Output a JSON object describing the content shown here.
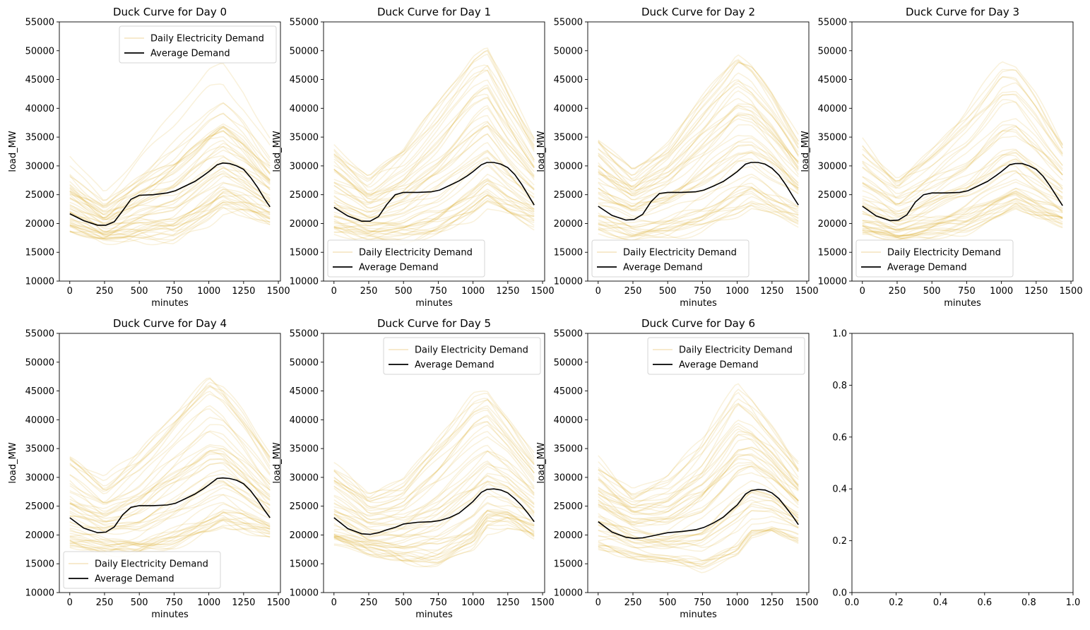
{
  "chart_data": [
    {
      "type": "line",
      "title": "Duck Curve for Day 0",
      "xlabel": "minutes",
      "ylabel": "load_MW",
      "xlim": [
        -75,
        1515
      ],
      "ylim": [
        10000,
        55000
      ],
      "xticks": [
        "0",
        "250",
        "500",
        "750",
        "1000",
        "1250",
        "1500"
      ],
      "yticks": [
        "10000",
        "15000",
        "20000",
        "25000",
        "30000",
        "35000",
        "40000",
        "45000",
        "50000",
        "55000"
      ],
      "legend": {
        "position": "upper-right",
        "entries": [
          "Daily Electricity Demand",
          "Average Demand"
        ]
      },
      "ensemble": {
        "name": "Daily Electricity Demand",
        "color": "#DAA520",
        "count": 52,
        "envelope": {
          "x": [
            0,
            250,
            500,
            750,
            1000,
            1100,
            1250,
            1440
          ],
          "min": [
            18500,
            17000,
            17500,
            16700,
            20000,
            22000,
            21500,
            20000
          ],
          "max": [
            32500,
            26000,
            33000,
            40000,
            47500,
            48500,
            44000,
            36000
          ]
        }
      },
      "average": {
        "name": "Average Demand",
        "color": "#000000",
        "x": [
          0,
          100,
          200,
          260,
          320,
          380,
          440,
          500,
          600,
          700,
          760,
          830,
          900,
          960,
          1000,
          1060,
          1100,
          1150,
          1200,
          1250,
          1300,
          1350,
          1400,
          1440
        ],
        "y": [
          21700,
          20500,
          19700,
          19700,
          20300,
          22200,
          24200,
          24900,
          25000,
          25300,
          25700,
          26500,
          27300,
          28300,
          29000,
          30200,
          30500,
          30400,
          30000,
          29400,
          28000,
          26300,
          24300,
          22900
        ]
      }
    },
    {
      "type": "line",
      "title": "Duck Curve for Day 1",
      "xlabel": "minutes",
      "ylabel": "load_MW",
      "xlim": [
        -75,
        1515
      ],
      "ylim": [
        10000,
        55000
      ],
      "xticks": [
        "0",
        "250",
        "500",
        "750",
        "1000",
        "1250",
        "1500"
      ],
      "yticks": [
        "10000",
        "15000",
        "20000",
        "25000",
        "30000",
        "35000",
        "40000",
        "45000",
        "50000",
        "55000"
      ],
      "legend": {
        "position": "lower-left",
        "entries": [
          "Daily Electricity Demand",
          "Average Demand"
        ]
      },
      "ensemble": {
        "name": "Daily Electricity Demand",
        "color": "#DAA520",
        "count": 52,
        "envelope": {
          "x": [
            0,
            250,
            500,
            750,
            1000,
            1100,
            1250,
            1440
          ],
          "min": [
            18500,
            17500,
            17500,
            18500,
            21500,
            23500,
            21500,
            20000
          ],
          "max": [
            34000,
            28000,
            33000,
            41000,
            50000,
            51500,
            44000,
            35000
          ]
        }
      },
      "average": {
        "name": "Average Demand",
        "color": "#000000",
        "x": [
          0,
          100,
          200,
          260,
          320,
          380,
          440,
          500,
          600,
          700,
          760,
          830,
          900,
          960,
          1000,
          1060,
          1100,
          1150,
          1200,
          1250,
          1300,
          1350,
          1400,
          1440
        ],
        "y": [
          22800,
          21300,
          20400,
          20400,
          21200,
          23300,
          25000,
          25400,
          25400,
          25500,
          25800,
          26600,
          27400,
          28300,
          29000,
          30200,
          30600,
          30600,
          30300,
          29700,
          28500,
          26800,
          24800,
          23200
        ]
      }
    },
    {
      "type": "line",
      "title": "Duck Curve for Day 2",
      "xlabel": "minutes",
      "ylabel": "load_MW",
      "xlim": [
        -75,
        1515
      ],
      "ylim": [
        10000,
        55000
      ],
      "xticks": [
        "0",
        "250",
        "500",
        "750",
        "1000",
        "1250",
        "1500"
      ],
      "yticks": [
        "10000",
        "15000",
        "20000",
        "25000",
        "30000",
        "35000",
        "40000",
        "45000",
        "50000",
        "55000"
      ],
      "legend": {
        "position": "lower-left",
        "entries": [
          "Daily Electricity Demand",
          "Average Demand"
        ]
      },
      "ensemble": {
        "name": "Daily Electricity Demand",
        "color": "#DAA520",
        "count": 52,
        "envelope": {
          "x": [
            0,
            250,
            500,
            750,
            1000,
            1100,
            1250,
            1440
          ],
          "min": [
            18500,
            17500,
            18000,
            19000,
            21500,
            23000,
            21500,
            20000
          ],
          "max": [
            35000,
            29000,
            34000,
            42000,
            50000,
            48000,
            43000,
            35000
          ]
        }
      },
      "average": {
        "name": "Average Demand",
        "color": "#000000",
        "x": [
          0,
          100,
          200,
          260,
          320,
          380,
          440,
          500,
          600,
          700,
          760,
          830,
          900,
          960,
          1000,
          1060,
          1100,
          1150,
          1200,
          1250,
          1300,
          1350,
          1400,
          1440
        ],
        "y": [
          23000,
          21400,
          20600,
          20700,
          21600,
          23800,
          25200,
          25400,
          25400,
          25500,
          25800,
          26500,
          27300,
          28300,
          29000,
          30300,
          30600,
          30600,
          30300,
          29600,
          28400,
          26700,
          24700,
          23200
        ]
      }
    },
    {
      "type": "line",
      "title": "Duck Curve for Day 3",
      "xlabel": "minutes",
      "ylabel": "load_MW",
      "xlim": [
        -75,
        1515
      ],
      "ylim": [
        10000,
        55000
      ],
      "xticks": [
        "0",
        "250",
        "500",
        "750",
        "1000",
        "1250",
        "1500"
      ],
      "yticks": [
        "10000",
        "15000",
        "20000",
        "25000",
        "30000",
        "35000",
        "40000",
        "45000",
        "50000",
        "55000"
      ],
      "legend": {
        "position": "lower-left",
        "entries": [
          "Daily Electricity Demand",
          "Average Demand"
        ]
      },
      "ensemble": {
        "name": "Daily Electricity Demand",
        "color": "#DAA520",
        "count": 52,
        "envelope": {
          "x": [
            0,
            250,
            500,
            750,
            1000,
            1100,
            1250,
            1440
          ],
          "min": [
            18500,
            17500,
            18000,
            19000,
            21500,
            23000,
            21500,
            20000
          ],
          "max": [
            34500,
            28000,
            34000,
            40000,
            48500,
            48000,
            43000,
            35000
          ]
        }
      },
      "average": {
        "name": "Average Demand",
        "color": "#000000",
        "x": [
          0,
          100,
          200,
          260,
          320,
          380,
          440,
          500,
          600,
          700,
          760,
          830,
          900,
          960,
          1000,
          1060,
          1100,
          1150,
          1200,
          1250,
          1300,
          1350,
          1400,
          1440
        ],
        "y": [
          23000,
          21300,
          20500,
          20600,
          21500,
          23700,
          25000,
          25300,
          25300,
          25400,
          25700,
          26500,
          27300,
          28300,
          29000,
          30200,
          30400,
          30400,
          30000,
          29400,
          28200,
          26500,
          24600,
          23100
        ]
      }
    },
    {
      "type": "line",
      "title": "Duck Curve for Day 4",
      "xlabel": "minutes",
      "ylabel": "load_MW",
      "xlim": [
        -75,
        1515
      ],
      "ylim": [
        10000,
        55000
      ],
      "xticks": [
        "0",
        "250",
        "500",
        "750",
        "1000",
        "1250",
        "1500"
      ],
      "yticks": [
        "10000",
        "15000",
        "20000",
        "25000",
        "30000",
        "35000",
        "40000",
        "45000",
        "50000",
        "55000"
      ],
      "legend": {
        "position": "lower-left",
        "entries": [
          "Daily Electricity Demand",
          "Average Demand"
        ]
      },
      "ensemble": {
        "name": "Daily Electricity Demand",
        "color": "#DAA520",
        "count": 52,
        "envelope": {
          "x": [
            0,
            250,
            500,
            750,
            1000,
            1100,
            1250,
            1440
          ],
          "min": [
            18500,
            17500,
            17000,
            18500,
            21000,
            22500,
            21500,
            20000
          ],
          "max": [
            34500,
            29500,
            35000,
            42000,
            49000,
            47000,
            42000,
            34500
          ]
        }
      },
      "average": {
        "name": "Average Demand",
        "color": "#000000",
        "x": [
          0,
          100,
          200,
          260,
          320,
          380,
          440,
          500,
          600,
          700,
          760,
          830,
          900,
          960,
          1000,
          1060,
          1100,
          1150,
          1200,
          1250,
          1300,
          1350,
          1400,
          1440
        ],
        "y": [
          23000,
          21200,
          20400,
          20500,
          21400,
          23500,
          24800,
          25100,
          25100,
          25200,
          25500,
          26300,
          27100,
          28000,
          28700,
          29800,
          29900,
          29800,
          29500,
          28900,
          27700,
          26100,
          24300,
          23000
        ]
      }
    },
    {
      "type": "line",
      "title": "Duck Curve for Day 5",
      "xlabel": "minutes",
      "ylabel": "load_MW",
      "xlim": [
        -75,
        1515
      ],
      "ylim": [
        10000,
        55000
      ],
      "xticks": [
        "0",
        "250",
        "500",
        "750",
        "1000",
        "1250",
        "1500"
      ],
      "yticks": [
        "10000",
        "15000",
        "20000",
        "25000",
        "30000",
        "35000",
        "40000",
        "45000",
        "50000",
        "55000"
      ],
      "legend": {
        "position": "upper-right",
        "entries": [
          "Daily Electricity Demand",
          "Average Demand"
        ]
      },
      "ensemble": {
        "name": "Daily Electricity Demand",
        "color": "#DAA520",
        "count": 52,
        "envelope": {
          "x": [
            0,
            250,
            500,
            750,
            1000,
            1100,
            1250,
            1440
          ],
          "min": [
            18500,
            17000,
            15500,
            15000,
            17500,
            21000,
            21500,
            19500
          ],
          "max": [
            32500,
            27000,
            30000,
            38000,
            45500,
            46000,
            41000,
            34000
          ]
        }
      },
      "average": {
        "name": "Average Demand",
        "color": "#000000",
        "x": [
          0,
          100,
          200,
          260,
          320,
          380,
          440,
          500,
          600,
          700,
          760,
          830,
          900,
          960,
          1000,
          1060,
          1100,
          1150,
          1200,
          1250,
          1300,
          1350,
          1400,
          1440
        ],
        "y": [
          23000,
          21100,
          20200,
          20100,
          20400,
          20900,
          21300,
          21900,
          22200,
          22300,
          22500,
          23000,
          23800,
          25000,
          25800,
          27400,
          27900,
          28000,
          27800,
          27300,
          26300,
          25100,
          23600,
          22300
        ]
      }
    },
    {
      "type": "line",
      "title": "Duck Curve for Day 6",
      "xlabel": "minutes",
      "ylabel": "load_MW",
      "xlim": [
        -75,
        1515
      ],
      "ylim": [
        10000,
        55000
      ],
      "xticks": [
        "0",
        "250",
        "500",
        "750",
        "1000",
        "1250",
        "1500"
      ],
      "yticks": [
        "10000",
        "15000",
        "20000",
        "25000",
        "30000",
        "35000",
        "40000",
        "45000",
        "50000",
        "55000"
      ],
      "legend": {
        "position": "upper-right",
        "entries": [
          "Daily Electricity Demand",
          "Average Demand"
        ]
      },
      "ensemble": {
        "name": "Daily Electricity Demand",
        "color": "#DAA520",
        "count": 52,
        "envelope": {
          "x": [
            0,
            250,
            500,
            750,
            1000,
            1100,
            1250,
            1440
          ],
          "min": [
            18000,
            16500,
            15000,
            14000,
            16500,
            20000,
            21000,
            19000
          ],
          "max": [
            33000,
            27500,
            30000,
            36500,
            46500,
            44000,
            39000,
            32500
          ]
        }
      },
      "average": {
        "name": "Average Demand",
        "color": "#000000",
        "x": [
          0,
          100,
          200,
          260,
          320,
          380,
          440,
          500,
          600,
          700,
          760,
          830,
          900,
          960,
          1000,
          1060,
          1100,
          1150,
          1200,
          1250,
          1300,
          1350,
          1400,
          1440
        ],
        "y": [
          22300,
          20500,
          19600,
          19400,
          19500,
          19800,
          20100,
          20400,
          20600,
          20900,
          21300,
          22100,
          23100,
          24400,
          25200,
          27100,
          27700,
          27900,
          27800,
          27300,
          26300,
          24800,
          23200,
          21800
        ]
      }
    },
    {
      "type": "line",
      "title": "",
      "xlabel": "",
      "ylabel": "",
      "xlim": [
        0,
        1
      ],
      "ylim": [
        0,
        1
      ],
      "xticks": [
        "0.0",
        "0.2",
        "0.4",
        "0.6",
        "0.8",
        "1.0"
      ],
      "yticks": [
        "0.0",
        "0.2",
        "0.4",
        "0.6",
        "0.8",
        "1.0"
      ]
    }
  ]
}
